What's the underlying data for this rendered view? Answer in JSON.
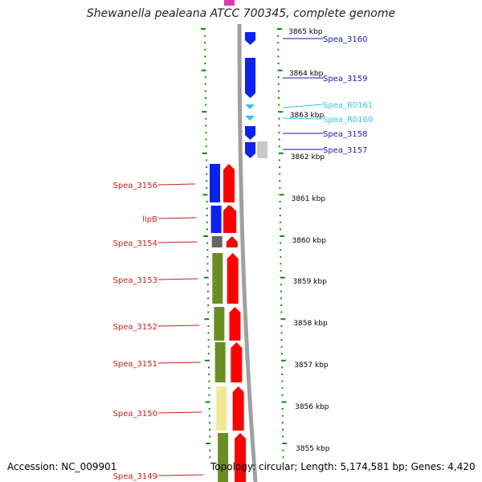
{
  "title": "Shewanella pealeana ATCC 700345, complete genome",
  "accession_text": "Accession: NC_009901",
  "topology_text": "Topology: circular; Length: 5,174,581 bp; Genes: 4,420",
  "colors": {
    "label_right": "#1a1ab0",
    "label_light": "#35c3ee",
    "label_left": "#c81e1e",
    "tick": "#0a8a0a",
    "backbone": "#a0a0a0",
    "blue": "#0b22f0",
    "red": "#ff0000",
    "olive": "#6b8e23",
    "pale": "#f1e893",
    "grey": "#666666",
    "magenta": "#e23aa5"
  },
  "scale_labels": [
    "3865 kbp",
    "3864 kbp",
    "3863 kbp",
    "3862 kbp",
    "3861 kbp",
    "3860 kbp",
    "3859 kbp",
    "3858 kbp",
    "3857 kbp",
    "3856 kbp",
    "3855 kbp"
  ],
  "right_genes": [
    {
      "label": "Spea_3160",
      "tone": "dark"
    },
    {
      "label": "Spea_3159",
      "tone": "dark"
    },
    {
      "label": "Spea_R0161",
      "tone": "light"
    },
    {
      "label": "Spea_R0160",
      "tone": "light"
    },
    {
      "label": "Spea_3158",
      "tone": "dark"
    },
    {
      "label": "Spea_3157",
      "tone": "dark"
    }
  ],
  "left_genes": [
    {
      "label": "Spea_3156",
      "cog": "blue"
    },
    {
      "label": "lipB",
      "cog": "blue"
    },
    {
      "label": "Spea_3154",
      "cog": "grey"
    },
    {
      "label": "Spea_3153",
      "cog": "olive"
    },
    {
      "label": "Spea_3152",
      "cog": "olive"
    },
    {
      "label": "Spea_3151",
      "cog": "olive"
    },
    {
      "label": "Spea_3150",
      "cog": "pale"
    },
    {
      "label": "Spea_3149",
      "cog": "olive"
    }
  ]
}
